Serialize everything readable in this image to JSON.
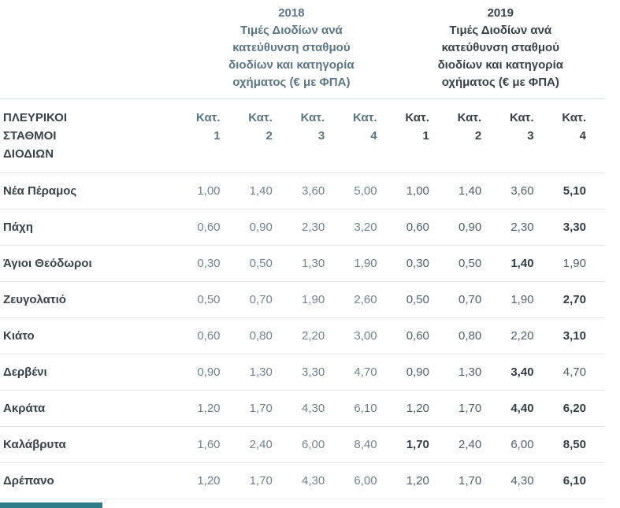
{
  "chart_data": {
    "type": "table",
    "title": "Τιμές Διοδίων ανά κατεύθυνση σταθμού διοδίων και κατηγορία οχήματος (€ με ΦΠΑ)",
    "currency_note": "€ με ΦΠΑ",
    "year_groups": [
      {
        "year": "2018",
        "subtitle_lines": [
          "Τιμές Διοδίων ανά",
          "κατεύθυνση σταθμού",
          "διοδίων και κατηγορία",
          "οχήματος (€ με ΦΠΑ)"
        ]
      },
      {
        "year": "2019",
        "subtitle_lines": [
          "Τιμές Διοδίων ανά",
          "κατεύθυνση σταθμού",
          "διοδίων και κατηγορία",
          "οχήματος (€ με ΦΠΑ)"
        ]
      }
    ],
    "row_header_lines": [
      "ΠΛΕΥΡΙΚΟΙ",
      "ΣΤΑΘΜΟΙ",
      "ΔΙΟΔΙΩΝ"
    ],
    "category_label": "Κατ.",
    "category_numbers": [
      "1",
      "2",
      "3",
      "4"
    ],
    "rows": [
      {
        "station": "Νέα Πέραμος",
        "values_2018": [
          "1,00",
          "1,40",
          "3,60",
          "5,00"
        ],
        "values_2019": [
          "1,00",
          "1,40",
          "3,60",
          "5,10"
        ],
        "bold_2019": [
          false,
          false,
          false,
          true
        ]
      },
      {
        "station": "Πάχη",
        "values_2018": [
          "0,60",
          "0,90",
          "2,30",
          "3,20"
        ],
        "values_2019": [
          "0,60",
          "0,90",
          "2,30",
          "3,30"
        ],
        "bold_2019": [
          false,
          false,
          false,
          true
        ]
      },
      {
        "station": "Άγιοι Θεόδωροι",
        "values_2018": [
          "0,30",
          "0,50",
          "1,30",
          "1,90"
        ],
        "values_2019": [
          "0,30",
          "0,50",
          "1,40",
          "1,90"
        ],
        "bold_2019": [
          false,
          false,
          true,
          false
        ]
      },
      {
        "station": "Ζευγολατιό",
        "values_2018": [
          "0,50",
          "0,70",
          "1,90",
          "2,60"
        ],
        "values_2019": [
          "0,50",
          "0,70",
          "1,90",
          "2,70"
        ],
        "bold_2019": [
          false,
          false,
          false,
          true
        ]
      },
      {
        "station": "Κιάτο",
        "values_2018": [
          "0,60",
          "0,80",
          "2,20",
          "3,00"
        ],
        "values_2019": [
          "0,60",
          "0,80",
          "2,20",
          "3,10"
        ],
        "bold_2019": [
          false,
          false,
          false,
          true
        ]
      },
      {
        "station": "Δερβένι",
        "values_2018": [
          "0,90",
          "1,30",
          "3,30",
          "4,70"
        ],
        "values_2019": [
          "0,90",
          "1,30",
          "3,40",
          "4,70"
        ],
        "bold_2019": [
          false,
          false,
          true,
          false
        ]
      },
      {
        "station": "Ακράτα",
        "values_2018": [
          "1,20",
          "1,70",
          "4,30",
          "6,10"
        ],
        "values_2019": [
          "1,20",
          "1,70",
          "4,40",
          "6,20"
        ],
        "bold_2019": [
          false,
          false,
          true,
          true
        ]
      },
      {
        "station": "Καλάβρυτα",
        "values_2018": [
          "1,60",
          "2,40",
          "6,00",
          "8,40"
        ],
        "values_2019": [
          "1,70",
          "2,40",
          "6,00",
          "8,50"
        ],
        "bold_2019": [
          true,
          false,
          false,
          true
        ]
      },
      {
        "station": "Δρέπανο",
        "values_2018": [
          "1,20",
          "1,70",
          "4,30",
          "6,00"
        ],
        "values_2019": [
          "1,20",
          "1,70",
          "4,30",
          "6,10"
        ],
        "bold_2019": [
          false,
          false,
          false,
          true
        ]
      }
    ]
  },
  "colors": {
    "accent_2018": "#5d7684",
    "accent_2019": "#3a4248",
    "value_2018": "#75828b",
    "value_2019": "#535f68",
    "value_bold": "#343d43",
    "row_border": "#e4e7e8",
    "footer_bar": "#2e7d88"
  }
}
